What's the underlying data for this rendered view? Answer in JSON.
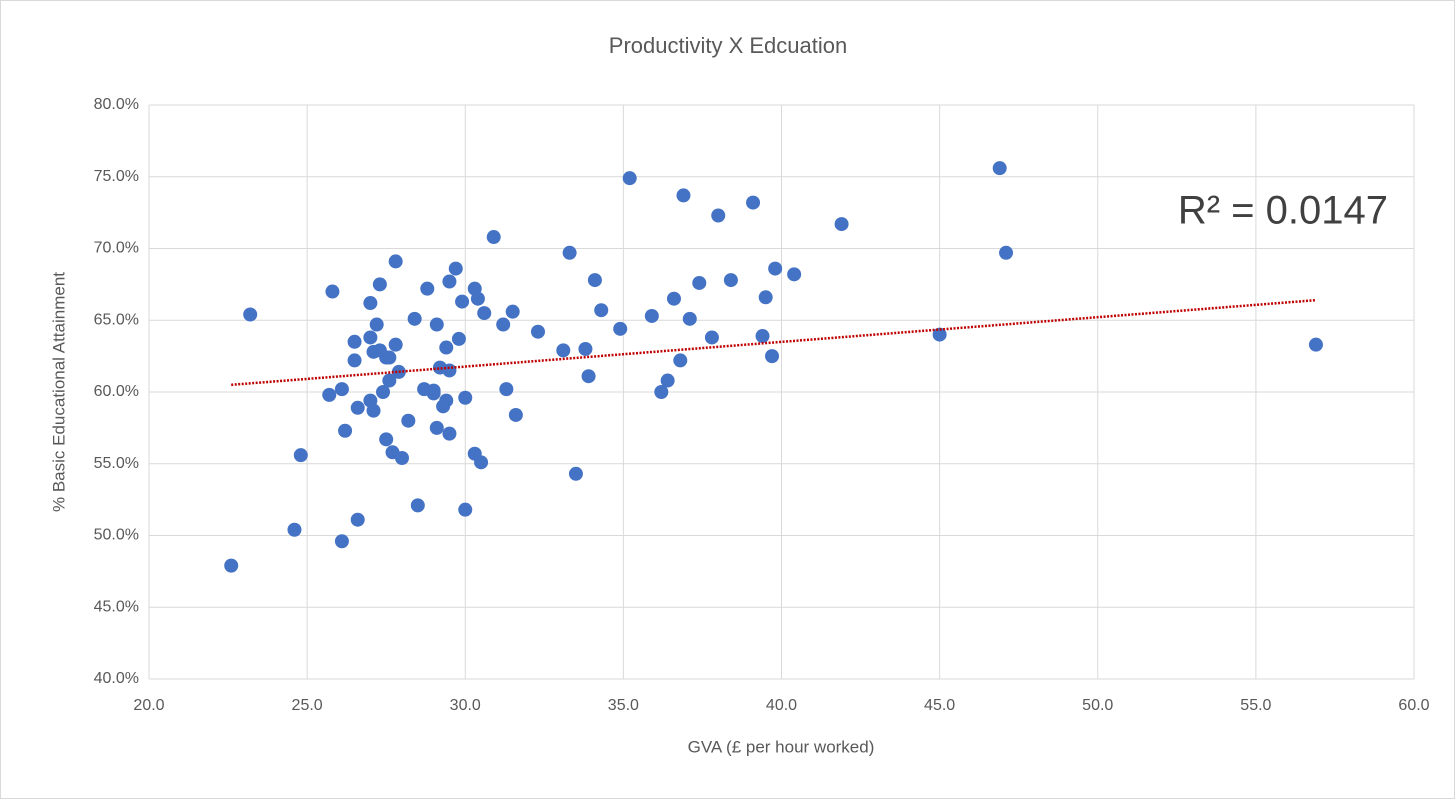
{
  "chart_data": {
    "type": "scatter",
    "title": "Productivity X Edcuation",
    "xlabel": "GVA (£ per hour worked)",
    "ylabel": "% Basic Educational Attainment",
    "color": "#4472c4",
    "grid": true,
    "xlim": [
      20,
      60
    ],
    "ylim": [
      40,
      80
    ],
    "xticks": [
      {
        "value": 20,
        "label": "20.0"
      },
      {
        "value": 25,
        "label": "25.0"
      },
      {
        "value": 30,
        "label": "30.0"
      },
      {
        "value": 35,
        "label": "35.0"
      },
      {
        "value": 40,
        "label": "40.0"
      },
      {
        "value": 45,
        "label": "45.0"
      },
      {
        "value": 50,
        "label": "50.0"
      },
      {
        "value": 55,
        "label": "55.0"
      },
      {
        "value": 60,
        "label": "60.0"
      }
    ],
    "yticks": [
      {
        "value": 40,
        "label": "40.0%"
      },
      {
        "value": 45,
        "label": "45.0%"
      },
      {
        "value": 50,
        "label": "50.0%"
      },
      {
        "value": 55,
        "label": "55.0%"
      },
      {
        "value": 60,
        "label": "60.0%"
      },
      {
        "value": 65,
        "label": "65.0%"
      },
      {
        "value": 70,
        "label": "70.0%"
      },
      {
        "value": 75,
        "label": "75.0%"
      },
      {
        "value": 80,
        "label": "80.0%"
      }
    ],
    "x": [
      22.6,
      23.2,
      24.8,
      24.6,
      25.7,
      25.8,
      26.1,
      26.2,
      26.1,
      26.5,
      26.5,
      26.6,
      26.6,
      27.0,
      27.0,
      27.1,
      27.0,
      27.1,
      27.2,
      27.3,
      27.3,
      27.4,
      27.5,
      27.5,
      27.6,
      27.6,
      27.7,
      27.8,
      27.8,
      27.9,
      28.0,
      28.2,
      28.4,
      28.5,
      28.7,
      28.8,
      29.0,
      29.0,
      29.1,
      29.1,
      29.2,
      29.3,
      29.4,
      29.4,
      29.5,
      29.5,
      29.5,
      29.7,
      29.8,
      29.9,
      30.0,
      30.0,
      30.3,
      30.4,
      30.3,
      30.5,
      30.6,
      30.9,
      31.2,
      31.3,
      31.5,
      31.6,
      32.3,
      33.1,
      33.3,
      33.5,
      33.8,
      33.9,
      34.1,
      34.3,
      34.9,
      35.2,
      35.9,
      36.2,
      36.4,
      36.6,
      36.8,
      36.9,
      37.1,
      37.4,
      37.8,
      38.0,
      38.4,
      39.1,
      39.4,
      39.5,
      39.7,
      39.8,
      40.4,
      41.9,
      45.0,
      46.9,
      47.1,
      56.9
    ],
    "values": [
      47.9,
      65.4,
      55.6,
      50.4,
      59.8,
      67.0,
      60.2,
      57.3,
      49.6,
      62.2,
      63.5,
      58.9,
      51.1,
      66.2,
      63.8,
      62.8,
      59.4,
      58.7,
      64.7,
      67.5,
      62.9,
      60.0,
      62.4,
      56.7,
      62.4,
      60.8,
      55.8,
      69.1,
      63.3,
      61.4,
      55.4,
      58.0,
      65.1,
      52.1,
      60.2,
      67.2,
      60.1,
      59.9,
      64.7,
      57.5,
      61.7,
      59.0,
      63.1,
      59.4,
      57.1,
      61.5,
      67.7,
      68.6,
      63.7,
      66.3,
      51.8,
      59.6,
      67.2,
      66.5,
      55.7,
      55.1,
      65.5,
      70.8,
      64.7,
      60.2,
      65.6,
      58.4,
      64.2,
      62.9,
      69.7,
      54.3,
      63.0,
      61.1,
      67.8,
      65.7,
      64.4,
      74.9,
      65.3,
      60.0,
      60.8,
      66.5,
      62.2,
      73.7,
      65.1,
      67.6,
      63.8,
      72.3,
      67.8,
      73.2,
      63.9,
      66.6,
      62.5,
      68.6,
      68.2,
      71.7,
      64.0,
      75.6,
      69.7,
      63.3
    ],
    "trendline": {
      "x": [
        22.6,
        56.9
      ],
      "values": [
        60.5,
        66.4
      ],
      "color": "#c00000",
      "label": "R² = 0.0147"
    }
  }
}
